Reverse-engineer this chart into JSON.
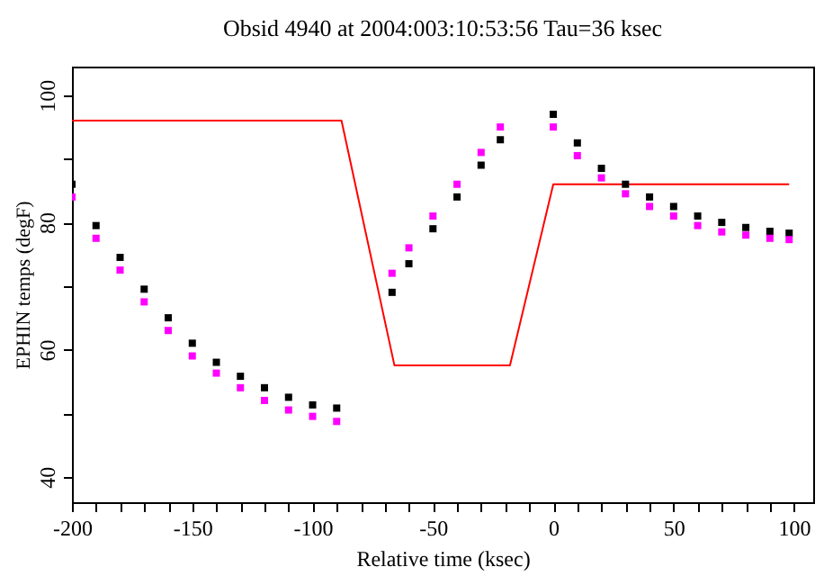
{
  "chart_data": {
    "type": "scatter",
    "title": "Obsid 4940 at 2004:003:10:53:56   Tau=36 ksec",
    "xlabel": "Relative time (ksec)",
    "ylabel": "EPHIN temps (degF)",
    "xlim": [
      -200,
      108
    ],
    "ylim": [
      36,
      104.5
    ],
    "xticks": [
      -200,
      {
        "value": -190,
        "label": null
      },
      {
        "value": -180,
        "label": null
      },
      {
        "value": -170,
        "label": null
      },
      {
        "value": -160,
        "label": null
      },
      -150,
      {
        "value": -140,
        "label": null
      },
      {
        "value": -130,
        "label": null
      },
      {
        "value": -120,
        "label": null
      },
      {
        "value": -110,
        "label": null
      },
      -100,
      {
        "value": -90,
        "label": null
      },
      {
        "value": -80,
        "label": null
      },
      {
        "value": -70,
        "label": null
      },
      {
        "value": -60,
        "label": null
      },
      -50,
      {
        "value": -40,
        "label": null
      },
      {
        "value": -30,
        "label": null
      },
      {
        "value": -20,
        "label": null
      },
      {
        "value": -10,
        "label": null
      },
      0,
      {
        "value": 10,
        "label": null
      },
      {
        "value": 20,
        "label": null
      },
      {
        "value": 30,
        "label": null
      },
      {
        "value": 40,
        "label": null
      },
      50,
      {
        "value": 60,
        "label": null
      },
      {
        "value": 70,
        "label": null
      },
      {
        "value": 80,
        "label": null
      },
      {
        "value": 90,
        "label": null
      },
      100
    ],
    "yticks": [
      40,
      {
        "value": 50,
        "label": null
      },
      60,
      {
        "value": 70,
        "label": null
      },
      80,
      {
        "value": 90,
        "label": null
      },
      100
    ],
    "grid": false,
    "series": [
      {
        "type": "line",
        "color": "#ff0000",
        "x": [
          -200,
          -88,
          -66,
          -18,
          0,
          98
        ],
        "values": [
          96,
          96,
          57.5,
          57.5,
          86,
          86
        ]
      },
      {
        "color": "#000000",
        "x": [
          -200,
          -190,
          -180,
          -170,
          -160,
          -150,
          -140,
          -130,
          -120,
          -110,
          -100,
          -90,
          -67,
          -60,
          -50,
          -40,
          -30,
          -22,
          0,
          10,
          20,
          30,
          40,
          50,
          60,
          70,
          80,
          90,
          98
        ],
        "values": [
          86,
          79.5,
          74.5,
          69.5,
          65,
          61,
          58,
          55.8,
          54,
          52.5,
          51.3,
          50.8,
          69,
          73.5,
          79,
          84,
          89,
          93,
          97,
          92.5,
          88.5,
          86,
          84,
          82.5,
          81,
          80,
          79.2,
          78.6,
          78.3
        ]
      },
      {
        "color": "#ff00ff",
        "x": [
          -200,
          -190,
          -180,
          -170,
          -160,
          -150,
          -140,
          -130,
          -120,
          -110,
          -100,
          -90,
          -67,
          -60,
          -50,
          -40,
          -30,
          -22,
          0,
          10,
          20,
          30,
          40,
          50,
          60,
          70,
          80,
          90,
          98
        ],
        "values": [
          84,
          77.5,
          72.5,
          67.5,
          63,
          59,
          56.3,
          54,
          52,
          50.5,
          49.5,
          48.7,
          72,
          76,
          81,
          86,
          91,
          95,
          95,
          90.5,
          87,
          84.5,
          82.5,
          81,
          79.5,
          78.5,
          78,
          77.5,
          77.3
        ]
      }
    ]
  }
}
